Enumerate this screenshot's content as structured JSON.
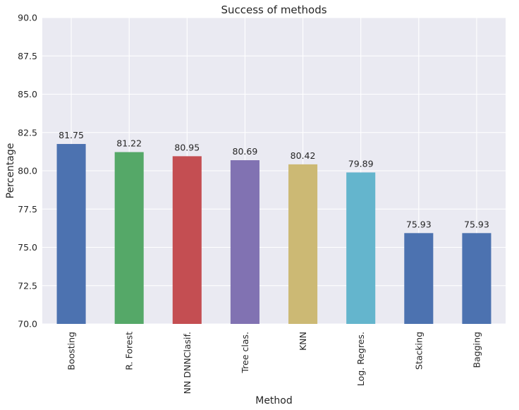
{
  "chart_data": {
    "type": "bar",
    "title": "Success of methods",
    "xlabel": "Method",
    "ylabel": "Percentage",
    "categories": [
      "Boosting",
      "R. Forest",
      "NN DNNClasif.",
      "Tree clas.",
      "KNN",
      "Log. Regres.",
      "Stacking",
      "Bagging"
    ],
    "values": [
      81.75,
      81.22,
      80.95,
      80.69,
      80.42,
      79.89,
      75.93,
      75.93
    ],
    "value_labels": [
      "81.75",
      "81.22",
      "80.95",
      "80.69",
      "80.42",
      "79.89",
      "75.93",
      "75.93"
    ],
    "bar_colors": [
      "#4c72b0",
      "#55a868",
      "#c44e52",
      "#8172b2",
      "#ccb974",
      "#64b5cd",
      "#4c72b0",
      "#4c72b0"
    ],
    "background_color": "#eaeaf2",
    "ylim": [
      70,
      90
    ],
    "yticks": [
      70.0,
      72.5,
      75.0,
      77.5,
      80.0,
      82.5,
      85.0,
      87.5,
      90.0
    ],
    "ytick_labels": [
      "70.0",
      "72.5",
      "75.0",
      "77.5",
      "80.0",
      "82.5",
      "85.0",
      "87.5",
      "90.0"
    ],
    "grid": true,
    "legend": "none"
  }
}
